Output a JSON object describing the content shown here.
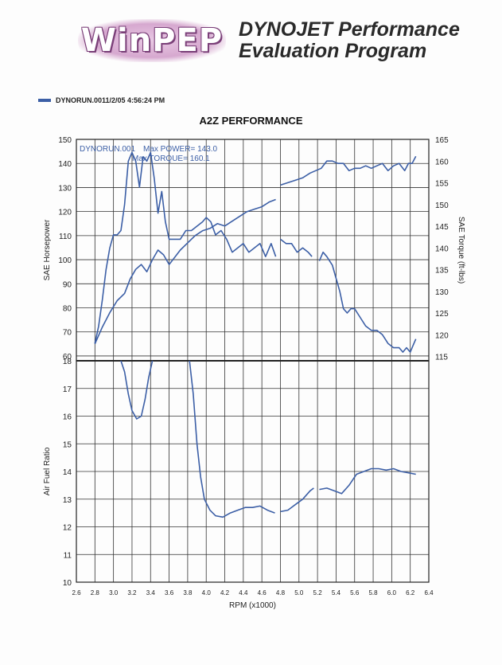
{
  "header": {
    "logo_text": "WinPEP",
    "brand_line1": "DYNOJET Performance",
    "brand_line2": "Evaluation Program"
  },
  "legend": {
    "run_label": "DYNORUN.0011/2/05 4:56:24 PM",
    "color": "#3c5fa6"
  },
  "colors": {
    "series": "#3c5fa6",
    "grid": "#333333"
  },
  "chart_data": [
    {
      "type": "line",
      "title": "A2Z PERFORMANCE",
      "xlabel": "",
      "ylabel": "SAE Horsepower",
      "y2label": "SAE Torque (ft-lbs)",
      "xlim": [
        2.6,
        6.4
      ],
      "ylim": [
        58,
        150
      ],
      "y2lim": [
        114,
        165
      ],
      "yticks": [
        60,
        70,
        80,
        90,
        100,
        110,
        120,
        130,
        140,
        150
      ],
      "y2ticks": [
        115,
        120,
        125,
        130,
        135,
        140,
        145,
        150,
        155,
        160,
        165
      ],
      "annotation_run": "DYNORUN.001",
      "annotation_power": "Max POWER= 143.0",
      "annotation_torque": "Max TORQUE= 160.1",
      "series": [
        {
          "name": "SAE Torque",
          "axis": "right",
          "segments": [
            [
              [
                2.8,
                118
              ],
              [
                2.84,
                122
              ],
              [
                2.88,
                128
              ],
              [
                2.92,
                135
              ],
              [
                2.96,
                140
              ],
              [
                3.0,
                143
              ],
              [
                3.04,
                143
              ],
              [
                3.08,
                144
              ],
              [
                3.12,
                150
              ],
              [
                3.16,
                160
              ],
              [
                3.2,
                162
              ],
              [
                3.24,
                160
              ],
              [
                3.28,
                154
              ],
              [
                3.32,
                161
              ],
              [
                3.36,
                160
              ],
              [
                3.4,
                162
              ],
              [
                3.44,
                156
              ],
              [
                3.48,
                148
              ],
              [
                3.52,
                153
              ],
              [
                3.56,
                146
              ],
              [
                3.6,
                142
              ],
              [
                3.66,
                142
              ],
              [
                3.72,
                142
              ],
              [
                3.78,
                144
              ],
              [
                3.84,
                144
              ],
              [
                3.9,
                145
              ],
              [
                3.96,
                146
              ],
              [
                4.0,
                147
              ],
              [
                4.05,
                146
              ],
              [
                4.1,
                143
              ],
              [
                4.16,
                144
              ],
              [
                4.22,
                142
              ],
              [
                4.28,
                139
              ],
              [
                4.34,
                140
              ],
              [
                4.4,
                141
              ],
              [
                4.46,
                139
              ],
              [
                4.52,
                140
              ],
              [
                4.58,
                141
              ],
              [
                4.64,
                138
              ],
              [
                4.7,
                141
              ],
              [
                4.75,
                138
              ]
            ],
            [
              [
                4.8,
                142
              ],
              [
                4.86,
                141
              ],
              [
                4.92,
                141
              ],
              [
                4.98,
                139
              ],
              [
                5.04,
                140
              ],
              [
                5.1,
                139
              ],
              [
                5.14,
                138
              ]
            ],
            [
              [
                5.22,
                137
              ],
              [
                5.26,
                139
              ],
              [
                5.3,
                138
              ],
              [
                5.36,
                136
              ],
              [
                5.4,
                133
              ],
              [
                5.44,
                130
              ],
              [
                5.48,
                126
              ],
              [
                5.52,
                125
              ],
              [
                5.56,
                126
              ],
              [
                5.6,
                126
              ],
              [
                5.66,
                124
              ],
              [
                5.72,
                122
              ],
              [
                5.78,
                121
              ],
              [
                5.84,
                121
              ],
              [
                5.9,
                120
              ],
              [
                5.96,
                118
              ],
              [
                6.02,
                117
              ],
              [
                6.08,
                117
              ],
              [
                6.12,
                116
              ],
              [
                6.16,
                117
              ],
              [
                6.2,
                116
              ],
              [
                6.24,
                118
              ],
              [
                6.26,
                119
              ]
            ]
          ]
        },
        {
          "name": "SAE Horsepower",
          "axis": "left",
          "segments": [
            [
              [
                2.8,
                65
              ],
              [
                2.88,
                72
              ],
              [
                2.96,
                78
              ],
              [
                3.04,
                83
              ],
              [
                3.12,
                86
              ],
              [
                3.18,
                92
              ],
              [
                3.24,
                96
              ],
              [
                3.3,
                98
              ],
              [
                3.36,
                95
              ],
              [
                3.42,
                100
              ],
              [
                3.48,
                104
              ],
              [
                3.54,
                102
              ],
              [
                3.6,
                98
              ],
              [
                3.66,
                101
              ],
              [
                3.72,
                104
              ],
              [
                3.8,
                107
              ],
              [
                3.88,
                110
              ],
              [
                3.96,
                112
              ],
              [
                4.04,
                113
              ],
              [
                4.12,
                115
              ],
              [
                4.2,
                114
              ],
              [
                4.28,
                116
              ],
              [
                4.36,
                118
              ],
              [
                4.44,
                120
              ],
              [
                4.52,
                121
              ],
              [
                4.6,
                122
              ],
              [
                4.68,
                124
              ],
              [
                4.75,
                125
              ]
            ],
            [
              [
                4.8,
                131
              ],
              [
                4.88,
                132
              ],
              [
                4.96,
                133
              ],
              [
                5.04,
                134
              ],
              [
                5.12,
                136
              ],
              [
                5.18,
                137
              ],
              [
                5.24,
                138
              ],
              [
                5.3,
                141
              ],
              [
                5.36,
                141
              ],
              [
                5.42,
                140
              ],
              [
                5.48,
                140
              ],
              [
                5.54,
                137
              ],
              [
                5.6,
                138
              ],
              [
                5.66,
                138
              ],
              [
                5.72,
                139
              ],
              [
                5.78,
                138
              ],
              [
                5.84,
                139
              ],
              [
                5.9,
                140
              ],
              [
                5.96,
                137
              ],
              [
                6.02,
                139
              ],
              [
                6.08,
                140
              ],
              [
                6.14,
                137
              ],
              [
                6.18,
                140
              ],
              [
                6.22,
                140
              ],
              [
                6.26,
                143
              ]
            ]
          ]
        }
      ]
    },
    {
      "type": "line",
      "xlabel": "RPM (x1000)",
      "ylabel": "Air Fuel Ratio",
      "xlim": [
        2.6,
        6.4
      ],
      "ylim": [
        10,
        18
      ],
      "yticks": [
        10,
        11,
        12,
        13,
        14,
        15,
        16,
        17,
        18
      ],
      "xticks": [
        "2.6",
        "2.8",
        "3.0",
        "3.2",
        "3.4",
        "3.6",
        "3.8",
        "4.0",
        "4.2",
        "4.4",
        "4.6",
        "4.8",
        "5.0",
        "5.2",
        "5.4",
        "5.6",
        "5.8",
        "6.0",
        "6.2",
        "6.4"
      ],
      "series": [
        {
          "name": "Air Fuel Ratio",
          "segments": [
            [
              [
                3.08,
                18.0
              ],
              [
                3.12,
                17.6
              ],
              [
                3.16,
                16.8
              ],
              [
                3.2,
                16.2
              ],
              [
                3.25,
                15.9
              ],
              [
                3.3,
                16.0
              ],
              [
                3.34,
                16.6
              ],
              [
                3.38,
                17.4
              ],
              [
                3.42,
                18.0
              ]
            ],
            [
              [
                3.82,
                18.0
              ],
              [
                3.86,
                16.8
              ],
              [
                3.9,
                15.0
              ],
              [
                3.94,
                13.8
              ],
              [
                3.98,
                13.0
              ],
              [
                4.04,
                12.6
              ],
              [
                4.1,
                12.4
              ],
              [
                4.18,
                12.35
              ],
              [
                4.26,
                12.5
              ],
              [
                4.34,
                12.6
              ],
              [
                4.42,
                12.7
              ],
              [
                4.5,
                12.7
              ],
              [
                4.58,
                12.75
              ],
              [
                4.66,
                12.6
              ],
              [
                4.74,
                12.5
              ]
            ],
            [
              [
                4.8,
                12.55
              ],
              [
                4.88,
                12.6
              ],
              [
                4.96,
                12.8
              ],
              [
                5.04,
                13.0
              ],
              [
                5.12,
                13.3
              ],
              [
                5.16,
                13.4
              ]
            ],
            [
              [
                5.22,
                13.35
              ],
              [
                5.3,
                13.4
              ],
              [
                5.38,
                13.3
              ],
              [
                5.46,
                13.2
              ],
              [
                5.54,
                13.5
              ],
              [
                5.62,
                13.9
              ],
              [
                5.7,
                14.0
              ],
              [
                5.78,
                14.1
              ],
              [
                5.86,
                14.1
              ],
              [
                5.94,
                14.05
              ],
              [
                6.02,
                14.1
              ],
              [
                6.1,
                14.0
              ],
              [
                6.18,
                13.95
              ],
              [
                6.26,
                13.9
              ]
            ]
          ]
        }
      ]
    }
  ]
}
